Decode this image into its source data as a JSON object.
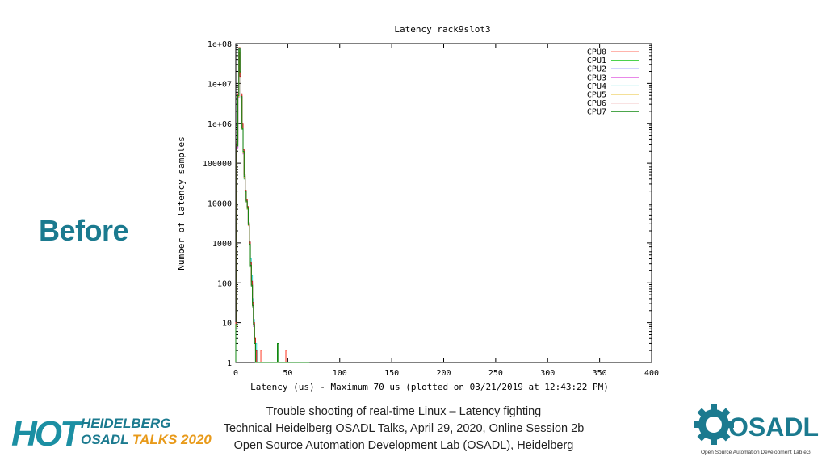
{
  "slide": {
    "heading": "Before",
    "footer_lines": [
      "Trouble shooting of real-time Linux – Latency fighting",
      "Technical Heidelberg OSADL Talks, April 29, 2020, Online Session 2b",
      "Open Source Automation Development Lab (OSADL), Heidelberg"
    ],
    "logo_hot": {
      "big": "HOT",
      "line1": "HEIDELBERG",
      "line2a": "OSADL ",
      "line2b": "TALKS 2020"
    },
    "logo_osadl": {
      "name": "OSADL",
      "subtitle": "Open Source Automation Development Lab eG"
    }
  },
  "chart_data": {
    "type": "line",
    "title": "Latency rack9slot3",
    "xlabel": "Latency (us) - Maximum 70 us (plotted on 03/21/2019 at 12:43:22 PM)",
    "ylabel": "Number of latency samples",
    "xlim": [
      0,
      400
    ],
    "ylim": [
      1,
      100000000
    ],
    "yscale": "log",
    "x_ticks": [
      "0",
      "50",
      "100",
      "150",
      "200",
      "250",
      "300",
      "350",
      "400"
    ],
    "y_ticks": [
      "1",
      "10",
      "100",
      "1000",
      "10000",
      "100000",
      "1e+06",
      "1e+07",
      "1e+08"
    ],
    "grid": false,
    "legend_position": "top-right",
    "series": [
      {
        "name": "CPU0",
        "color": "#ff6a5a",
        "points": [
          [
            0,
            10
          ],
          [
            1,
            300000
          ],
          [
            2,
            5000000
          ],
          [
            3,
            80000000
          ],
          [
            4,
            20000000
          ],
          [
            5,
            5000000
          ],
          [
            6,
            800000
          ],
          [
            7,
            200000
          ],
          [
            8,
            50000
          ],
          [
            9,
            20000
          ],
          [
            10,
            12000
          ],
          [
            11,
            8000
          ],
          [
            12,
            3000
          ],
          [
            13,
            1000
          ],
          [
            14,
            300
          ],
          [
            15,
            100
          ],
          [
            16,
            30
          ],
          [
            17,
            10
          ],
          [
            18,
            4
          ],
          [
            19,
            2
          ],
          [
            20,
            1
          ],
          [
            24,
            2
          ],
          [
            28,
            1
          ],
          [
            41,
            1
          ],
          [
            48,
            2
          ],
          [
            55,
            1
          ]
        ]
      },
      {
        "name": "CPU1",
        "color": "#33cc33",
        "points": [
          [
            0,
            8
          ],
          [
            1,
            250000
          ],
          [
            2,
            4500000
          ],
          [
            3,
            70000000
          ],
          [
            4,
            18000000
          ],
          [
            5,
            4000000
          ],
          [
            6,
            700000
          ],
          [
            7,
            180000
          ],
          [
            8,
            40000
          ],
          [
            9,
            18000
          ],
          [
            10,
            11000
          ],
          [
            11,
            7000
          ],
          [
            12,
            2800
          ],
          [
            13,
            900
          ],
          [
            14,
            250
          ],
          [
            15,
            80
          ],
          [
            16,
            25
          ],
          [
            17,
            8
          ],
          [
            18,
            3
          ],
          [
            19,
            1
          ],
          [
            22,
            1
          ],
          [
            35,
            1
          ],
          [
            46,
            1
          ],
          [
            60,
            1
          ]
        ]
      },
      {
        "name": "CPU2",
        "color": "#4f4fff",
        "points": [
          [
            0,
            9
          ],
          [
            1,
            260000
          ],
          [
            2,
            4800000
          ],
          [
            3,
            75000000
          ],
          [
            4,
            19000000
          ],
          [
            5,
            4500000
          ],
          [
            6,
            750000
          ],
          [
            7,
            190000
          ],
          [
            8,
            45000
          ],
          [
            9,
            19000
          ],
          [
            10,
            11500
          ],
          [
            11,
            7500
          ],
          [
            12,
            2900
          ],
          [
            13,
            950
          ],
          [
            14,
            280
          ],
          [
            15,
            90
          ],
          [
            16,
            28
          ],
          [
            17,
            9
          ],
          [
            18,
            3
          ],
          [
            19,
            1
          ],
          [
            25,
            1
          ],
          [
            50,
            1
          ]
        ]
      },
      {
        "name": "CPU3",
        "color": "#e060e0",
        "points": [
          [
            0,
            7
          ],
          [
            1,
            240000
          ],
          [
            2,
            4400000
          ],
          [
            3,
            72000000
          ],
          [
            4,
            17000000
          ],
          [
            5,
            4200000
          ],
          [
            6,
            720000
          ],
          [
            7,
            170000
          ],
          [
            8,
            42000
          ],
          [
            9,
            17000
          ],
          [
            10,
            10500
          ],
          [
            11,
            7200
          ],
          [
            12,
            2700
          ],
          [
            13,
            880
          ],
          [
            14,
            260
          ],
          [
            15,
            85
          ],
          [
            16,
            26
          ],
          [
            17,
            8
          ],
          [
            18,
            3
          ],
          [
            19,
            1
          ],
          [
            27,
            1
          ],
          [
            57,
            1
          ]
        ]
      },
      {
        "name": "CPU4",
        "color": "#40d8d8",
        "points": [
          [
            0,
            9
          ],
          [
            1,
            320000
          ],
          [
            2,
            5200000
          ],
          [
            3,
            65000000
          ],
          [
            4,
            16000000
          ],
          [
            5,
            4600000
          ],
          [
            6,
            760000
          ],
          [
            7,
            200000
          ],
          [
            8,
            48000
          ],
          [
            9,
            18500
          ],
          [
            10,
            10000
          ],
          [
            11,
            7000
          ],
          [
            12,
            3100
          ],
          [
            13,
            1100
          ],
          [
            14,
            400
          ],
          [
            15,
            150
          ],
          [
            16,
            40
          ],
          [
            17,
            12
          ],
          [
            18,
            3
          ],
          [
            19,
            3
          ],
          [
            20,
            2
          ],
          [
            23,
            1
          ],
          [
            52,
            1
          ],
          [
            65,
            1
          ]
        ]
      },
      {
        "name": "CPU5",
        "color": "#e8c030",
        "points": [
          [
            0,
            8
          ],
          [
            1,
            280000
          ],
          [
            2,
            4700000
          ],
          [
            3,
            68000000
          ],
          [
            4,
            17500000
          ],
          [
            5,
            4300000
          ],
          [
            6,
            730000
          ],
          [
            7,
            185000
          ],
          [
            8,
            43000
          ],
          [
            9,
            17500
          ],
          [
            10,
            10800
          ],
          [
            11,
            7100
          ],
          [
            12,
            2750
          ],
          [
            13,
            920
          ],
          [
            14,
            270
          ],
          [
            15,
            88
          ],
          [
            16,
            27
          ],
          [
            17,
            9
          ],
          [
            18,
            3
          ],
          [
            19,
            1
          ],
          [
            30,
            1
          ],
          [
            62,
            1
          ]
        ]
      },
      {
        "name": "CPU6",
        "color": "#d01818",
        "points": [
          [
            0,
            10
          ],
          [
            1,
            350000
          ],
          [
            2,
            5500000
          ],
          [
            3,
            60000000
          ],
          [
            4,
            15000000
          ],
          [
            5,
            5500000
          ],
          [
            6,
            1000000
          ],
          [
            7,
            220000
          ],
          [
            8,
            52000
          ],
          [
            9,
            21000
          ],
          [
            10,
            12500
          ],
          [
            11,
            8200
          ],
          [
            12,
            3200
          ],
          [
            13,
            1050
          ],
          [
            14,
            320
          ],
          [
            15,
            110
          ],
          [
            16,
            32
          ],
          [
            17,
            10
          ],
          [
            18,
            4
          ],
          [
            19,
            2
          ],
          [
            20,
            1
          ],
          [
            26,
            1
          ],
          [
            44,
            1
          ],
          [
            58,
            1
          ]
        ]
      },
      {
        "name": "CPU7",
        "color": "#108810",
        "points": [
          [
            0,
            9
          ],
          [
            1,
            270000
          ],
          [
            2,
            4900000
          ],
          [
            3,
            78000000
          ],
          [
            4,
            19500000
          ],
          [
            5,
            4700000
          ],
          [
            6,
            740000
          ],
          [
            7,
            195000
          ],
          [
            8,
            46000
          ],
          [
            9,
            19500
          ],
          [
            10,
            11200
          ],
          [
            11,
            7400
          ],
          [
            12,
            2850
          ],
          [
            13,
            930
          ],
          [
            14,
            275
          ],
          [
            15,
            87
          ],
          [
            16,
            27
          ],
          [
            17,
            9
          ],
          [
            18,
            3
          ],
          [
            19,
            1
          ],
          [
            40,
            3
          ],
          [
            68,
            1
          ],
          [
            70,
            1
          ]
        ]
      }
    ]
  }
}
